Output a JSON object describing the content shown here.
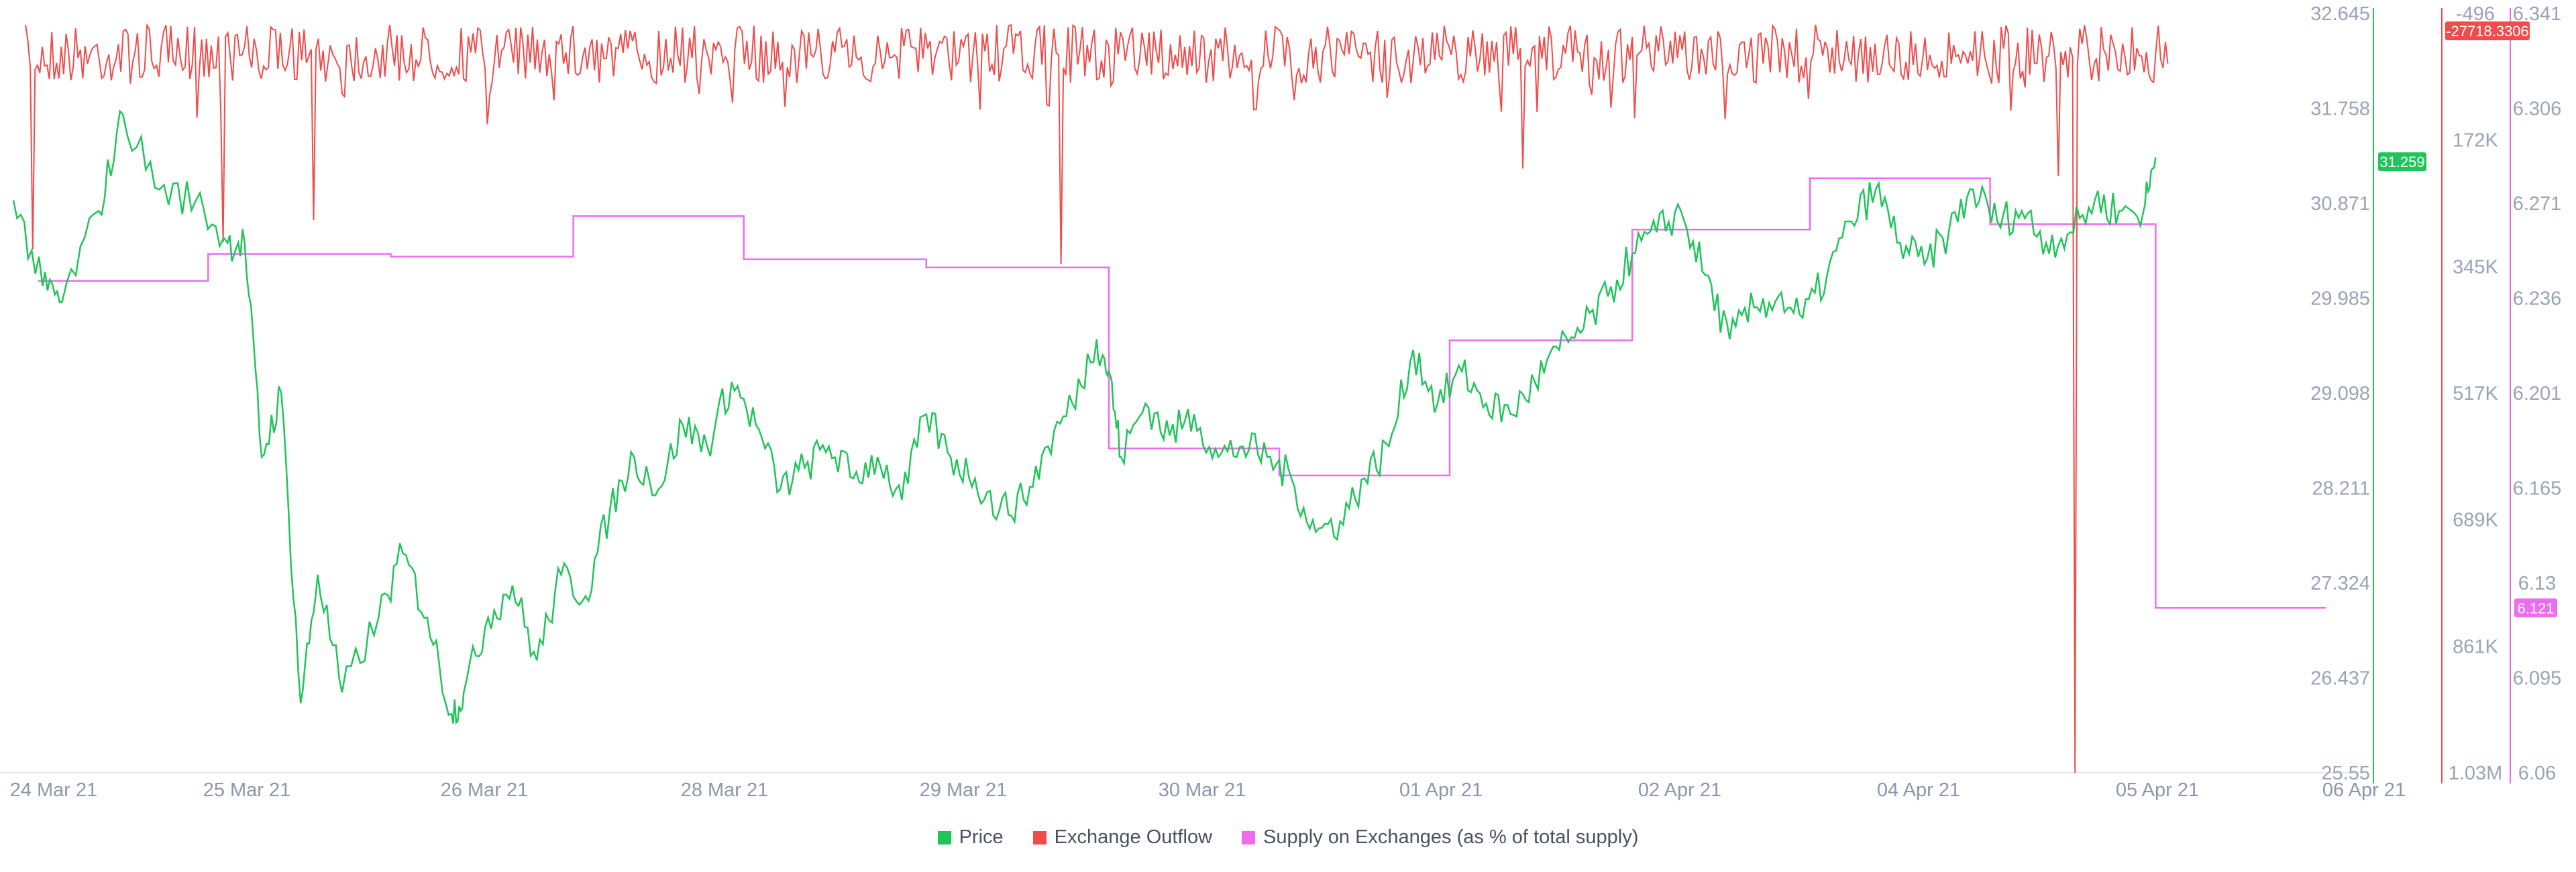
{
  "chart_data": {
    "type": "line",
    "title": "",
    "x_ticks": [
      "24 Mar 21",
      "25 Mar 21",
      "26 Mar 21",
      "28 Mar 21",
      "29 Mar 21",
      "30 Mar 21",
      "01 Apr 21",
      "02 Apr 21",
      "04 Apr 21",
      "05 Apr 21",
      "06 Apr 21"
    ],
    "axes": {
      "price": {
        "ticks": [
          "32.645",
          "31.758",
          "30.871",
          "29.985",
          "29.098",
          "28.211",
          "27.324",
          "26.437",
          "25.55"
        ],
        "ylim": [
          25.55,
          32.645
        ]
      },
      "outflow": {
        "ticks": [
          "-496",
          "172K",
          "345K",
          "517K",
          "689K",
          "861K",
          "1.03M"
        ],
        "ylim": [
          -496,
          1030000
        ],
        "inverted": true
      },
      "supply": {
        "ticks": [
          "6.341",
          "6.306",
          "6.271",
          "6.236",
          "6.201",
          "6.165",
          "6.13",
          "6.095",
          "6.06"
        ],
        "ylim": [
          6.06,
          6.341
        ]
      }
    },
    "badges": {
      "price": "31.259",
      "outflow": "-27718.3306",
      "supply": "6.121"
    },
    "colors": {
      "price": "#21c45a",
      "outflow": "#f04c4c",
      "supply": "#ee6cf0"
    },
    "series": [
      {
        "name": "Price",
        "axis": "price",
        "points": [
          [
            0.0,
            30.9
          ],
          [
            0.12,
            30.1
          ],
          [
            0.2,
            29.95
          ],
          [
            0.35,
            30.8
          ],
          [
            0.45,
            31.7
          ],
          [
            0.6,
            31.0
          ],
          [
            0.75,
            30.9
          ],
          [
            0.88,
            30.5
          ],
          [
            0.95,
            30.5
          ],
          [
            1.02,
            28.5
          ],
          [
            1.1,
            29.1
          ],
          [
            1.18,
            26.2
          ],
          [
            1.25,
            27.4
          ],
          [
            1.35,
            26.3
          ],
          [
            1.5,
            27.0
          ],
          [
            1.6,
            27.6
          ],
          [
            1.7,
            27.0
          ],
          [
            1.8,
            26.1
          ],
          [
            1.85,
            26.3
          ],
          [
            1.95,
            27.0
          ],
          [
            2.05,
            27.3
          ],
          [
            2.15,
            26.6
          ],
          [
            2.25,
            27.4
          ],
          [
            2.35,
            27.2
          ],
          [
            2.45,
            28.0
          ],
          [
            2.55,
            28.5
          ],
          [
            2.65,
            28.2
          ],
          [
            2.75,
            28.8
          ],
          [
            2.85,
            28.6
          ],
          [
            2.95,
            29.2
          ],
          [
            3.05,
            28.8
          ],
          [
            3.15,
            28.2
          ],
          [
            3.25,
            28.4
          ],
          [
            3.35,
            28.6
          ],
          [
            3.45,
            28.3
          ],
          [
            3.55,
            28.5
          ],
          [
            3.65,
            28.1
          ],
          [
            3.75,
            28.9
          ],
          [
            3.85,
            28.5
          ],
          [
            3.95,
            28.3
          ],
          [
            4.05,
            28.0
          ],
          [
            4.15,
            28.1
          ],
          [
            4.25,
            28.6
          ],
          [
            4.35,
            29.0
          ],
          [
            4.45,
            29.6
          ],
          [
            4.5,
            29.3
          ],
          [
            4.55,
            28.5
          ],
          [
            4.65,
            29.0
          ],
          [
            4.75,
            28.7
          ],
          [
            4.85,
            28.9
          ],
          [
            4.95,
            28.5
          ],
          [
            5.05,
            28.6
          ],
          [
            5.15,
            28.5
          ],
          [
            5.25,
            28.3
          ],
          [
            5.35,
            27.8
          ],
          [
            5.45,
            27.9
          ],
          [
            5.55,
            28.3
          ],
          [
            5.65,
            28.6
          ],
          [
            5.75,
            29.5
          ],
          [
            5.85,
            29.0
          ],
          [
            5.95,
            29.3
          ],
          [
            6.05,
            29.0
          ],
          [
            6.15,
            28.9
          ],
          [
            6.25,
            29.2
          ],
          [
            6.35,
            29.5
          ],
          [
            6.45,
            29.7
          ],
          [
            6.55,
            30.0
          ],
          [
            6.65,
            30.4
          ],
          [
            6.75,
            30.6
          ],
          [
            6.85,
            30.8
          ],
          [
            6.95,
            30.2
          ],
          [
            7.05,
            29.6
          ],
          [
            7.15,
            29.9
          ],
          [
            7.25,
            30.0
          ],
          [
            7.35,
            29.8
          ],
          [
            7.45,
            30.2
          ],
          [
            7.55,
            30.7
          ],
          [
            7.65,
            31.0
          ],
          [
            7.75,
            30.5
          ],
          [
            7.85,
            30.3
          ],
          [
            7.95,
            30.6
          ],
          [
            8.05,
            31.0
          ],
          [
            8.15,
            30.7
          ],
          [
            8.25,
            30.8
          ],
          [
            8.35,
            30.5
          ],
          [
            8.45,
            30.6
          ],
          [
            8.55,
            30.9
          ],
          [
            8.65,
            30.8
          ],
          [
            8.75,
            30.8
          ],
          [
            8.8,
            31.3
          ]
        ]
      },
      {
        "name": "Exchange Outflow",
        "axis": "outflow",
        "base": 50000,
        "spikes": [
          [
            0.08,
            320000
          ],
          [
            0.86,
            310000
          ],
          [
            1.23,
            280000
          ],
          [
            1.95,
            150000
          ],
          [
            2.7,
            60000
          ],
          [
            3.4,
            45000
          ],
          [
            3.97,
            130000
          ],
          [
            4.3,
            340000
          ],
          [
            5.1,
            130000
          ],
          [
            5.55,
            40000
          ],
          [
            6.2,
            210000
          ],
          [
            6.48,
            110000
          ],
          [
            7.08,
            80000
          ],
          [
            7.9,
            70000
          ],
          [
            8.47,
            1030000
          ],
          [
            8.4,
            220000
          ]
        ]
      },
      {
        "name": "Supply on Exchanges (as % of total supply)",
        "axis": "supply",
        "points": [
          [
            0.1,
            6.242
          ],
          [
            0.8,
            6.242
          ],
          [
            0.8,
            6.252
          ],
          [
            1.55,
            6.252
          ],
          [
            1.55,
            6.251
          ],
          [
            2.3,
            6.251
          ],
          [
            2.3,
            6.266
          ],
          [
            3.0,
            6.266
          ],
          [
            3.0,
            6.25
          ],
          [
            3.75,
            6.25
          ],
          [
            3.75,
            6.247
          ],
          [
            4.5,
            6.247
          ],
          [
            4.5,
            6.18
          ],
          [
            5.2,
            6.18
          ],
          [
            5.2,
            6.17
          ],
          [
            5.9,
            6.17
          ],
          [
            5.9,
            6.22
          ],
          [
            6.65,
            6.22
          ],
          [
            6.65,
            6.261
          ],
          [
            7.38,
            6.261
          ],
          [
            7.38,
            6.28
          ],
          [
            8.12,
            6.28
          ],
          [
            8.12,
            6.263
          ],
          [
            8.8,
            6.263
          ],
          [
            8.8,
            6.121
          ],
          [
            9.5,
            6.121
          ]
        ]
      }
    ],
    "legend": [
      "Price",
      "Exchange Outflow",
      "Supply on Exchanges (as % of total supply)"
    ],
    "legend_position": "bottom-center",
    "grid": false
  }
}
